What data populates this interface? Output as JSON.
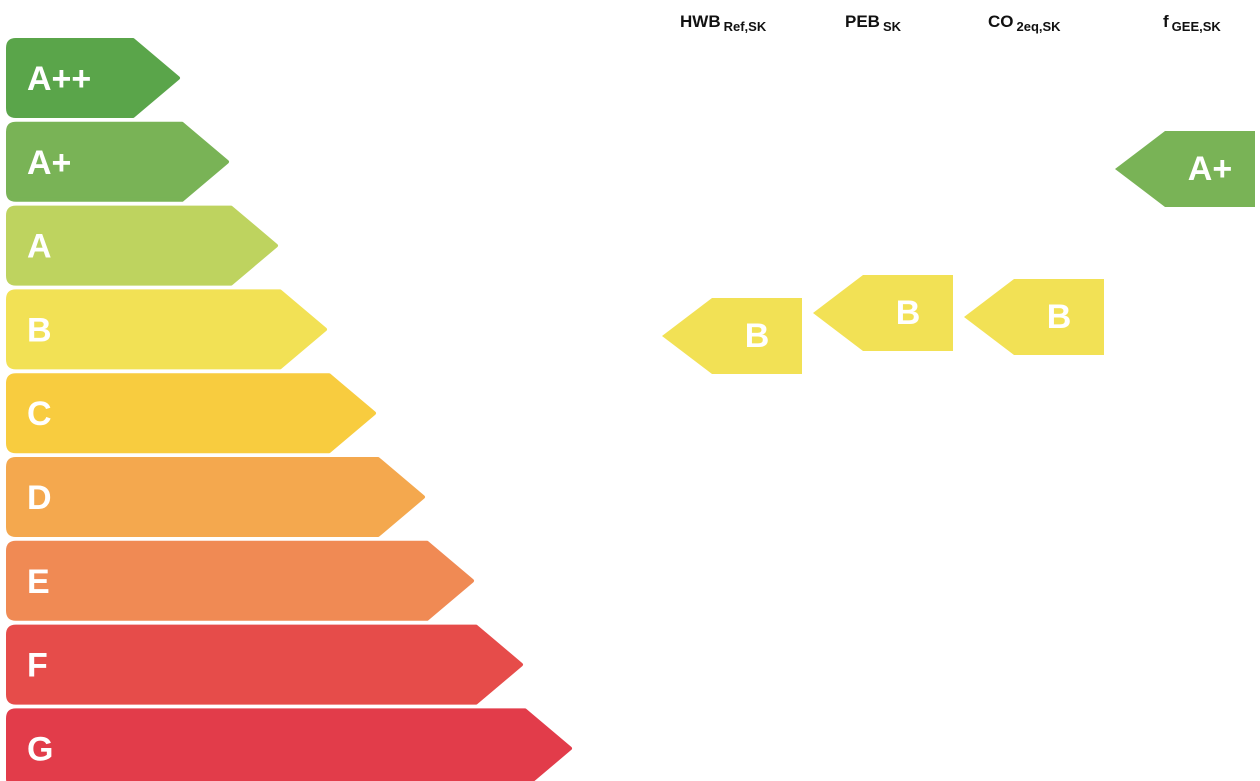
{
  "colors": {
    "A++": "#5aa54a",
    "A+": "#79b356",
    "A": "#bed35f",
    "B": "#f2e155",
    "C": "#f8cc3f",
    "D": "#f4a84e",
    "E": "#f08a54",
    "F": "#e64c4a",
    "G": "#e23c4a"
  },
  "columns": [
    {
      "main": "HWB",
      "sub": "Ref,SK"
    },
    {
      "main": "PEB",
      "sub": "SK"
    },
    {
      "main": "CO",
      "sub": "2eq,SK"
    },
    {
      "main": "f",
      "sub": "GEE,SK"
    }
  ],
  "chart_data": {
    "type": "table",
    "scale": [
      "A++",
      "A+",
      "A",
      "B",
      "C",
      "D",
      "E",
      "F",
      "G"
    ],
    "indicators": [
      {
        "name": "HWB Ref,SK",
        "rating": "B"
      },
      {
        "name": "PEB SK",
        "rating": "B"
      },
      {
        "name": "CO 2eq,SK",
        "rating": "B"
      },
      {
        "name": "f GEE,SK",
        "rating": "A+"
      }
    ]
  }
}
